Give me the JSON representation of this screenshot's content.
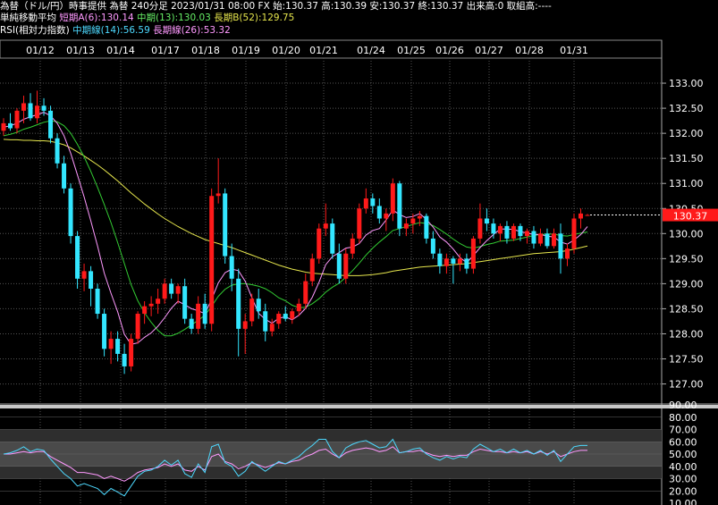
{
  "header": {
    "line1": "為替（ドル/円）時事提供 為替 240分足 2023/01/31 08:00 FX 始:130.37 高:130.39 安:130.37 終:130.37 出来高:0 取組高:----",
    "ma_label": "単純移動平均",
    "ma_short": "短期A(6):130.14",
    "ma_mid": "中期(13):130.03",
    "ma_long": "長期B(52):129.75",
    "rsi_label": "RSI(相対力指数)",
    "rsi_mid": "中期線(14):56.59",
    "rsi_long": "長期線(26):53.32"
  },
  "colors": {
    "up": "#ff1a1a",
    "down": "#33e6ff",
    "ma_short": "#ff99ff",
    "ma_mid": "#33cc33",
    "ma_long": "#e6e64d",
    "rsi_mid": "#4dd9ff",
    "rsi_long": "#ff99ff",
    "price_tag": "#ff1a1a"
  },
  "dates": [
    "01/12",
    "01/13",
    "01/14",
    "01/17",
    "01/18",
    "01/19",
    "01/20",
    "01/21",
    "01/24",
    "01/25",
    "01/26",
    "01/27",
    "01/28",
    "01/31"
  ],
  "price_axis_labels": [
    "133.00",
    "132.50",
    "132.00",
    "131.50",
    "131.00",
    "130.50",
    "130.00",
    "129.50",
    "129.00",
    "128.50",
    "128.00",
    "127.50",
    "127.00"
  ],
  "current_price": "130.37",
  "rsi_axis_labels": [
    "90.00",
    "80.00",
    "70.00",
    "60.00",
    "50.00",
    "40.00",
    "30.00",
    "20.00",
    "10.00"
  ],
  "chart_data": [
    {
      "type": "candlestick",
      "title": "為替（ドル/円）240分足",
      "ylim": [
        126.6,
        133.5
      ],
      "candles": [
        [
          132.05,
          132.3,
          131.95,
          132.2
        ],
        [
          132.2,
          132.4,
          132.05,
          132.1
        ],
        [
          132.1,
          132.5,
          132.0,
          132.45
        ],
        [
          132.45,
          132.75,
          132.2,
          132.6
        ],
        [
          132.6,
          132.8,
          132.25,
          132.3
        ],
        [
          132.3,
          132.85,
          132.2,
          132.55
        ],
        [
          132.55,
          132.7,
          132.35,
          132.45
        ],
        [
          132.45,
          132.55,
          131.8,
          131.9
        ],
        [
          131.9,
          132.0,
          131.3,
          131.4
        ],
        [
          131.4,
          131.55,
          130.8,
          130.9
        ],
        [
          130.9,
          131.0,
          129.8,
          129.95
        ],
        [
          129.95,
          130.05,
          128.9,
          129.1
        ],
        [
          129.1,
          129.4,
          128.85,
          129.25
        ],
        [
          129.25,
          129.35,
          128.55,
          128.9
        ],
        [
          128.9,
          129.0,
          128.3,
          128.4
        ],
        [
          128.4,
          128.5,
          127.55,
          127.7
        ],
        [
          127.7,
          128.05,
          127.4,
          127.9
        ],
        [
          127.9,
          128.05,
          127.45,
          127.6
        ],
        [
          127.6,
          127.8,
          127.2,
          127.35
        ],
        [
          127.35,
          128.0,
          127.25,
          127.9
        ],
        [
          127.9,
          128.45,
          127.8,
          128.4
        ],
        [
          128.4,
          128.65,
          128.2,
          128.55
        ],
        [
          128.55,
          128.75,
          128.35,
          128.6
        ],
        [
          128.6,
          128.9,
          128.4,
          128.7
        ],
        [
          128.7,
          129.1,
          128.6,
          129.0
        ],
        [
          129.0,
          129.1,
          128.7,
          128.8
        ],
        [
          128.8,
          129.0,
          128.6,
          128.95
        ],
        [
          128.95,
          129.1,
          128.2,
          128.3
        ],
        [
          128.3,
          128.4,
          128.0,
          128.1
        ],
        [
          128.1,
          128.75,
          128.0,
          128.6
        ],
        [
          128.6,
          128.8,
          128.1,
          128.2
        ],
        [
          128.2,
          130.9,
          128.05,
          130.75
        ],
        [
          130.75,
          131.5,
          130.6,
          130.8
        ],
        [
          130.8,
          130.9,
          129.4,
          129.55
        ],
        [
          129.55,
          129.8,
          128.85,
          129.1
        ],
        [
          129.1,
          129.3,
          127.55,
          128.1
        ],
        [
          128.1,
          128.4,
          127.6,
          128.25
        ],
        [
          128.25,
          128.8,
          128.15,
          128.7
        ],
        [
          128.7,
          128.9,
          128.3,
          128.45
        ],
        [
          128.45,
          128.6,
          127.85,
          128.05
        ],
        [
          128.05,
          128.3,
          127.95,
          128.2
        ],
        [
          128.2,
          128.45,
          128.1,
          128.4
        ],
        [
          128.4,
          128.55,
          128.25,
          128.3
        ],
        [
          128.3,
          128.5,
          128.2,
          128.45
        ],
        [
          128.45,
          128.7,
          128.35,
          128.6
        ],
        [
          128.6,
          129.2,
          128.5,
          129.05
        ],
        [
          129.05,
          129.6,
          128.95,
          129.5
        ],
        [
          129.5,
          130.2,
          129.4,
          130.1
        ],
        [
          130.1,
          130.6,
          129.95,
          130.2
        ],
        [
          130.2,
          130.3,
          129.5,
          129.6
        ],
        [
          129.6,
          129.8,
          129.0,
          129.1
        ],
        [
          129.1,
          129.7,
          129.0,
          129.6
        ],
        [
          129.6,
          130.0,
          129.5,
          129.9
        ],
        [
          129.9,
          130.6,
          129.8,
          130.5
        ],
        [
          130.5,
          130.9,
          130.4,
          130.7
        ],
        [
          130.7,
          130.8,
          130.4,
          130.55
        ],
        [
          130.55,
          130.7,
          130.2,
          130.3
        ],
        [
          130.3,
          130.5,
          130.05,
          130.4
        ],
        [
          130.4,
          131.1,
          130.25,
          131.0
        ],
        [
          131.0,
          131.05,
          129.95,
          130.1
        ],
        [
          130.1,
          130.3,
          129.95,
          130.2
        ],
        [
          130.2,
          130.4,
          130.0,
          130.3
        ],
        [
          130.3,
          130.45,
          130.15,
          130.35
        ],
        [
          130.35,
          130.4,
          129.8,
          129.9
        ],
        [
          129.9,
          130.05,
          129.5,
          129.6
        ],
        [
          129.6,
          129.7,
          129.2,
          129.35
        ],
        [
          129.35,
          129.6,
          129.2,
          129.5
        ],
        [
          129.5,
          129.55,
          129.0,
          129.4
        ],
        [
          129.4,
          129.6,
          129.25,
          129.5
        ],
        [
          129.5,
          129.6,
          129.2,
          129.3
        ],
        [
          129.3,
          129.95,
          129.2,
          129.9
        ],
        [
          129.9,
          130.6,
          129.8,
          130.3
        ],
        [
          130.3,
          130.5,
          130.05,
          130.2
        ],
        [
          130.2,
          130.3,
          129.9,
          130.0
        ],
        [
          130.0,
          130.2,
          129.85,
          130.15
        ],
        [
          130.15,
          130.25,
          129.8,
          129.9
        ],
        [
          129.9,
          130.2,
          129.85,
          130.15
        ],
        [
          130.15,
          130.2,
          129.85,
          129.95
        ],
        [
          129.95,
          130.1,
          129.8,
          130.05
        ],
        [
          130.05,
          130.15,
          129.7,
          129.8
        ],
        [
          129.8,
          130.1,
          129.75,
          130.0
        ],
        [
          130.0,
          130.1,
          129.7,
          129.75
        ],
        [
          129.75,
          130.1,
          129.7,
          130.0
        ],
        [
          130.0,
          130.2,
          129.2,
          129.5
        ],
        [
          129.5,
          129.8,
          129.35,
          129.7
        ],
        [
          129.7,
          130.4,
          129.6,
          130.3
        ],
        [
          130.3,
          130.5,
          130.1,
          130.4
        ],
        [
          130.37,
          130.39,
          130.37,
          130.37
        ]
      ],
      "ma_short": [
        132.12,
        132.15,
        132.2,
        132.28,
        132.33,
        132.37,
        132.42,
        132.35,
        132.2,
        131.95,
        131.6,
        131.17,
        130.73,
        130.25,
        129.75,
        129.21,
        128.81,
        128.44,
        127.99,
        127.79,
        127.82,
        127.93,
        128.02,
        128.15,
        128.32,
        128.51,
        128.65,
        128.58,
        128.5,
        128.46,
        128.4,
        128.69,
        129.02,
        129.22,
        129.29,
        129.26,
        129.05,
        128.72,
        128.41,
        128.29,
        128.21,
        128.31,
        128.34,
        128.28,
        128.37,
        128.51,
        128.73,
        129.03,
        129.38,
        129.54,
        129.62,
        129.71,
        129.73,
        129.8,
        129.97,
        130.06,
        130.1,
        130.27,
        130.47,
        130.38,
        130.32,
        130.34,
        130.4,
        130.28,
        130.13,
        129.93,
        129.83,
        129.69,
        129.52,
        129.42,
        129.56,
        129.72,
        129.86,
        129.98,
        130.09,
        130.09,
        130.08,
        130.04,
        130.01,
        129.98,
        129.98,
        129.95,
        129.93,
        129.83,
        129.79,
        129.87,
        129.98,
        130.14
      ],
      "ma_mid": [
        131.95,
        131.98,
        132.02,
        132.08,
        132.12,
        132.17,
        132.22,
        132.25,
        132.23,
        132.15,
        132.0,
        131.78,
        131.53,
        131.24,
        130.92,
        130.58,
        130.22,
        129.82,
        129.4,
        128.98,
        128.66,
        128.42,
        128.23,
        128.07,
        127.96,
        127.96,
        128.01,
        128.09,
        128.18,
        128.27,
        128.37,
        128.55,
        128.75,
        128.89,
        128.97,
        129.0,
        129.0,
        128.98,
        128.95,
        128.9,
        128.82,
        128.72,
        128.66,
        128.57,
        128.52,
        128.53,
        128.6,
        128.7,
        128.83,
        128.93,
        129.01,
        129.13,
        129.26,
        129.41,
        129.57,
        129.71,
        129.83,
        129.94,
        130.06,
        130.1,
        130.14,
        130.18,
        130.22,
        130.2,
        130.16,
        130.08,
        129.99,
        129.89,
        129.8,
        129.73,
        129.71,
        129.74,
        129.78,
        129.81,
        129.85,
        129.86,
        129.87,
        129.9,
        129.93,
        129.96,
        129.98,
        129.99,
        129.99,
        129.96,
        129.95,
        129.98,
        130.01,
        130.03
      ],
      "ma_long": [
        131.88,
        131.87,
        131.87,
        131.86,
        131.86,
        131.85,
        131.85,
        131.84,
        131.81,
        131.77,
        131.71,
        131.63,
        131.55,
        131.46,
        131.37,
        131.27,
        131.16,
        131.05,
        130.93,
        130.81,
        130.7,
        130.59,
        130.49,
        130.39,
        130.3,
        130.22,
        130.14,
        130.07,
        130.0,
        129.94,
        129.88,
        129.84,
        129.8,
        129.76,
        129.72,
        129.67,
        129.62,
        129.57,
        129.52,
        129.47,
        129.42,
        129.37,
        129.33,
        129.29,
        129.26,
        129.23,
        129.21,
        129.2,
        129.19,
        129.18,
        129.17,
        129.16,
        129.16,
        129.16,
        129.17,
        129.18,
        129.2,
        129.22,
        129.25,
        129.27,
        129.29,
        129.31,
        129.33,
        129.34,
        129.35,
        129.36,
        129.37,
        129.38,
        129.39,
        129.4,
        129.42,
        129.44,
        129.46,
        129.48,
        129.5,
        129.52,
        129.54,
        129.56,
        129.58,
        129.6,
        129.61,
        129.62,
        129.63,
        129.64,
        129.66,
        129.69,
        129.72,
        129.75
      ]
    },
    {
      "type": "line",
      "title": "RSI(相対力指数)",
      "ylim": [
        10,
        90
      ],
      "series": [
        {
          "name": "中期線(14)",
          "values": [
            50,
            51,
            53,
            56,
            52,
            54,
            53,
            46,
            40,
            34,
            30,
            24,
            26,
            24,
            22,
            17,
            22,
            19,
            16,
            24,
            32,
            36,
            37,
            40,
            45,
            41,
            45,
            34,
            31,
            42,
            35,
            56,
            58,
            43,
            40,
            32,
            36,
            44,
            40,
            36,
            40,
            44,
            42,
            45,
            48,
            53,
            57,
            62,
            62,
            52,
            47,
            55,
            58,
            60,
            61,
            58,
            55,
            56,
            62,
            51,
            52,
            54,
            55,
            50,
            47,
            45,
            48,
            46,
            48,
            47,
            54,
            58,
            55,
            52,
            54,
            51,
            54,
            51,
            53,
            50,
            53,
            49,
            53,
            44,
            50,
            56,
            57,
            57
          ]
        },
        {
          "name": "長期線(26)",
          "values": [
            50,
            50,
            51,
            52,
            51,
            52,
            52,
            48,
            45,
            42,
            39,
            35,
            35,
            34,
            33,
            30,
            32,
            30,
            28,
            31,
            35,
            37,
            38,
            39,
            42,
            40,
            42,
            37,
            36,
            40,
            37,
            48,
            50,
            44,
            42,
            38,
            40,
            43,
            41,
            39,
            41,
            43,
            42,
            44,
            45,
            48,
            50,
            53,
            54,
            50,
            47,
            51,
            53,
            54,
            55,
            54,
            52,
            53,
            56,
            51,
            52,
            52,
            53,
            51,
            49,
            48,
            49,
            48,
            49,
            49,
            52,
            54,
            53,
            52,
            52,
            51,
            52,
            51,
            52,
            50,
            52,
            50,
            52,
            48,
            50,
            52,
            53,
            53
          ]
        }
      ]
    }
  ]
}
